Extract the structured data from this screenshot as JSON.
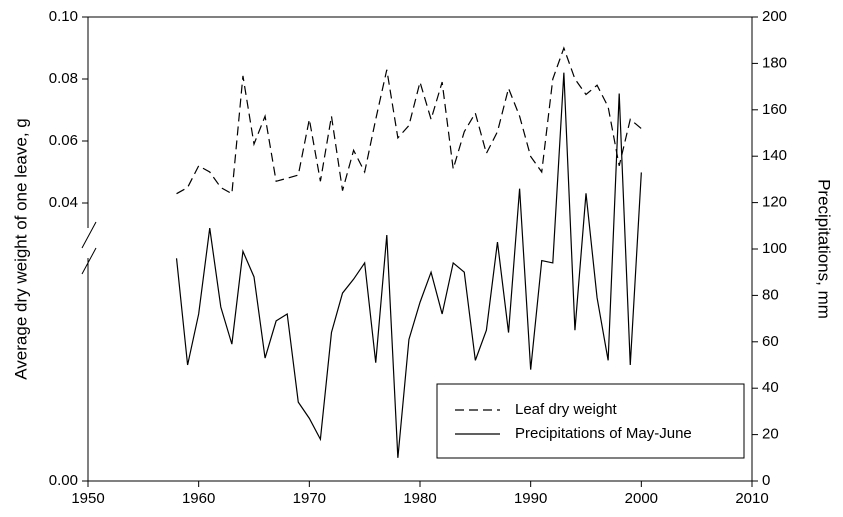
{
  "chart_data": {
    "type": "line",
    "x_label": null,
    "y_label": "Average dry weight of one leave, g",
    "y2_label": "Precipitations, mm",
    "x": [
      1958,
      1959,
      1960,
      1961,
      1962,
      1963,
      1964,
      1965,
      1966,
      1967,
      1968,
      1969,
      1970,
      1971,
      1972,
      1973,
      1974,
      1975,
      1976,
      1977,
      1978,
      1979,
      1980,
      1981,
      1982,
      1983,
      1984,
      1985,
      1986,
      1987,
      1988,
      1989,
      1990,
      1991,
      1992,
      1993,
      1994,
      1995,
      1996,
      1997,
      1998,
      1999,
      2000
    ],
    "series": [
      {
        "name": "Leaf dry weight",
        "color": "#000000",
        "dash": "dashed",
        "values": [
          0.043,
          0.045,
          0.052,
          0.05,
          0.045,
          0.043,
          0.081,
          0.059,
          0.068,
          0.047,
          0.048,
          0.049,
          0.067,
          0.047,
          0.068,
          0.044,
          0.057,
          0.05,
          0.067,
          0.083,
          0.061,
          0.065,
          0.079,
          0.067,
          0.079,
          0.051,
          0.063,
          0.069,
          0.056,
          0.063,
          0.077,
          0.068,
          0.055,
          0.05,
          0.08,
          0.09,
          0.08,
          0.075,
          0.078,
          0.071,
          0.052,
          0.067,
          0.064
        ]
      },
      {
        "name": "Precipitations of May-June",
        "color": "#000000",
        "dash": "solid",
        "axis": "y2",
        "values": [
          96,
          50,
          72,
          109,
          75,
          59,
          99,
          88,
          53,
          69,
          72,
          34,
          27,
          18,
          64,
          81,
          87,
          94,
          51,
          106,
          10,
          61,
          77,
          90,
          72,
          94,
          90,
          52,
          65,
          103,
          64,
          126,
          48,
          95,
          94,
          176,
          65,
          124,
          79,
          52,
          167,
          50,
          133
        ]
      }
    ],
    "xlim": [
      1950,
      2010
    ],
    "xticks": [
      1950,
      1960,
      1970,
      1980,
      1990,
      2000,
      2010
    ],
    "ylim": [
      0,
      0.1
    ],
    "yticks": [
      {
        "value": 0,
        "label": "0.00"
      },
      {
        "value": 0.04,
        "label": "0.04"
      },
      {
        "value": 0.06,
        "label": "0.06"
      },
      {
        "value": 0.08,
        "label": "0.08"
      },
      {
        "value": 0.1,
        "label": "0.10"
      }
    ],
    "y_axis_break": true,
    "y2lim": [
      0,
      200
    ],
    "y2ticks": [
      0,
      20,
      40,
      60,
      80,
      100,
      120,
      140,
      160,
      180,
      200
    ],
    "legend": "bottom-right",
    "grid": false
  }
}
